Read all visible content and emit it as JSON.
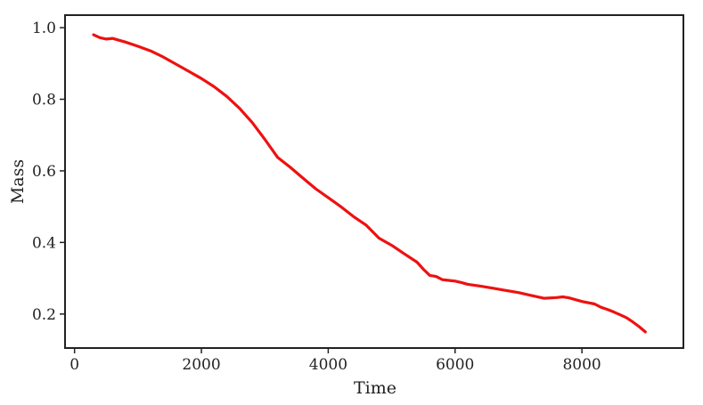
{
  "chart_data": {
    "type": "line",
    "title": "",
    "xlabel": "Time",
    "ylabel": "Mass",
    "xlim": [
      -150,
      9600
    ],
    "ylim": [
      0.105,
      1.035
    ],
    "xticks": [
      0,
      2000,
      4000,
      6000,
      8000
    ],
    "xtick_labels": [
      "0",
      "2000",
      "4000",
      "6000",
      "8000"
    ],
    "yticks": [
      0.2,
      0.4,
      0.6,
      0.8,
      1.0
    ],
    "ytick_labels": [
      "0.2",
      "0.4",
      "0.6",
      "0.8",
      "1.0"
    ],
    "grid": false,
    "legend": "none",
    "series": [
      {
        "color": "#ee1111",
        "x": [
          300,
          400,
          500,
          600,
          700,
          800,
          1000,
          1200,
          1400,
          1600,
          1800,
          2000,
          2200,
          2400,
          2600,
          2800,
          3000,
          3200,
          3400,
          3600,
          3800,
          4000,
          4200,
          4400,
          4600,
          4800,
          5000,
          5200,
          5400,
          5500,
          5600,
          5700,
          5800,
          5900,
          6000,
          6100,
          6200,
          6400,
          6600,
          6800,
          7000,
          7200,
          7400,
          7600,
          7700,
          7800,
          8000,
          8200,
          8300,
          8400,
          8500,
          8600,
          8700,
          8800,
          8900,
          9000
        ],
        "y": [
          0.98,
          0.972,
          0.968,
          0.97,
          0.965,
          0.96,
          0.948,
          0.935,
          0.918,
          0.898,
          0.878,
          0.858,
          0.835,
          0.808,
          0.775,
          0.735,
          0.688,
          0.638,
          0.61,
          0.58,
          0.55,
          0.525,
          0.5,
          0.472,
          0.448,
          0.412,
          0.392,
          0.368,
          0.345,
          0.325,
          0.308,
          0.305,
          0.296,
          0.294,
          0.292,
          0.288,
          0.283,
          0.278,
          0.272,
          0.266,
          0.26,
          0.252,
          0.244,
          0.246,
          0.248,
          0.245,
          0.235,
          0.228,
          0.219,
          0.213,
          0.206,
          0.198,
          0.19,
          0.178,
          0.165,
          0.15
        ]
      }
    ]
  }
}
